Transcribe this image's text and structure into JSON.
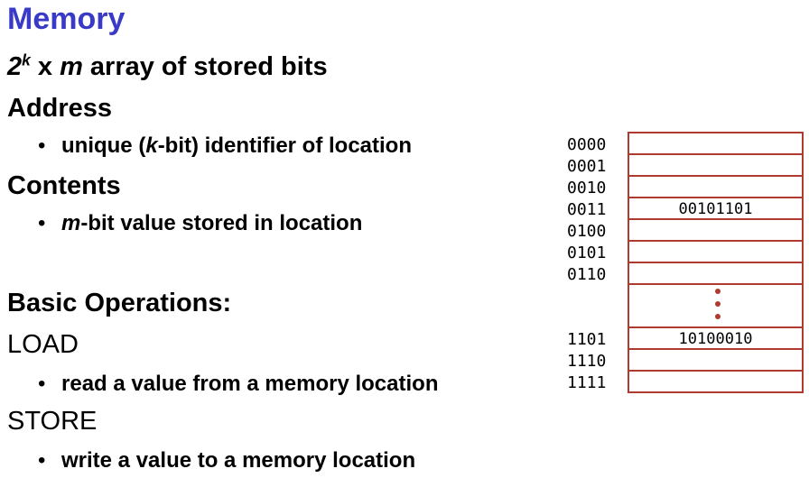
{
  "slide": {
    "title": "Memory",
    "line1": {
      "base": "2",
      "exp": "k",
      "x": " x ",
      "m": "m",
      "rest": " array of stored bits"
    },
    "address": {
      "heading": "Address",
      "bullet_pre": "unique (",
      "bullet_k": "k",
      "bullet_post": "-bit) identifier of location"
    },
    "contents": {
      "heading": "Contents",
      "bullet_m": "m",
      "bullet_post": "-bit value stored in location"
    },
    "ops_heading": "Basic Operations:",
    "load": {
      "label": "LOAD",
      "bullet": "read a value from a memory location"
    },
    "store": {
      "label": "STORE",
      "bullet": "write a value to a memory location"
    },
    "bullet_char": "•"
  },
  "diagram": {
    "addresses": [
      "0000",
      "0001",
      "0010",
      "0011",
      "0100",
      "0101",
      "0110",
      "1101",
      "1110",
      "1111"
    ],
    "cell_0011": "00101101",
    "cell_1101": "10100010",
    "border_color": "#b03a2e"
  }
}
